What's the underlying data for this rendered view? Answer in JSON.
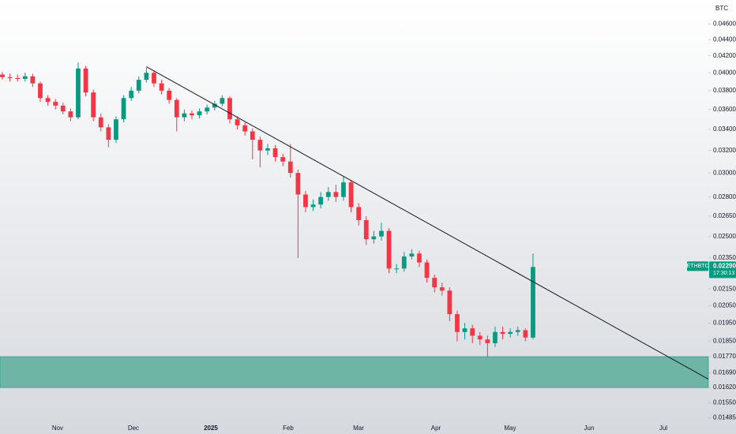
{
  "chart_data": {
    "type": "candlestick",
    "currency": "BTC",
    "symbol": "ETHBTC",
    "countdown": "17:30:13",
    "last_price": {
      "value": 0.0229,
      "label": "0.02290"
    },
    "log_scale": true,
    "grid": false,
    "up_color": "#089981",
    "down_color": "#f23645",
    "open": [
      0.0398,
      0.0395,
      0.0394,
      0.0393,
      0.0396,
      0.0388,
      0.0372,
      0.0368,
      0.0364,
      0.0358,
      0.0352,
      0.0405,
      0.0378,
      0.0352,
      0.0342,
      0.033,
      0.035,
      0.0372,
      0.038,
      0.0392,
      0.04,
      0.0388,
      0.038,
      0.037,
      0.0352,
      0.0356,
      0.0354,
      0.0358,
      0.0362,
      0.0366,
      0.0372,
      0.035,
      0.0344,
      0.0338,
      0.033,
      0.032,
      0.0322,
      0.0314,
      0.031,
      0.03,
      0.0282,
      0.0272,
      0.0274,
      0.028,
      0.0284,
      0.028,
      0.0292,
      0.0272,
      0.0262,
      0.0248,
      0.025,
      0.0254,
      0.0228,
      0.0228,
      0.0236,
      0.0238,
      0.0232,
      0.0222,
      0.0216,
      0.0214,
      0.02,
      0.019,
      0.0192,
      0.0188,
      0.0186,
      0.0184,
      0.019,
      0.0189,
      0.019,
      0.0191,
      0.0187
    ],
    "high": [
      0.0401,
      0.0399,
      0.0398,
      0.04,
      0.0399,
      0.039,
      0.0375,
      0.0371,
      0.0367,
      0.0361,
      0.0412,
      0.0408,
      0.0381,
      0.0356,
      0.0345,
      0.0353,
      0.0375,
      0.0384,
      0.0396,
      0.0406,
      0.0403,
      0.0392,
      0.0383,
      0.0372,
      0.036,
      0.0359,
      0.0361,
      0.0365,
      0.0369,
      0.0375,
      0.0374,
      0.0353,
      0.0347,
      0.0341,
      0.0333,
      0.0326,
      0.0325,
      0.0317,
      0.0326,
      0.0303,
      0.0285,
      0.0278,
      0.0284,
      0.0288,
      0.029,
      0.0297,
      0.0294,
      0.0275,
      0.0265,
      0.0254,
      0.026,
      0.0256,
      0.0231,
      0.0239,
      0.0241,
      0.024,
      0.0234,
      0.0224,
      0.0219,
      0.0216,
      0.0202,
      0.0195,
      0.0194,
      0.019,
      0.0188,
      0.0193,
      0.0193,
      0.0192,
      0.0193,
      0.0192,
      0.0238
    ],
    "low": [
      0.0392,
      0.039,
      0.039,
      0.039,
      0.0384,
      0.0368,
      0.0364,
      0.036,
      0.0355,
      0.0348,
      0.035,
      0.0374,
      0.0348,
      0.0338,
      0.0323,
      0.0327,
      0.0347,
      0.0369,
      0.0377,
      0.0389,
      0.0384,
      0.0376,
      0.0366,
      0.0338,
      0.0348,
      0.035,
      0.0351,
      0.0355,
      0.0359,
      0.0363,
      0.0346,
      0.034,
      0.0334,
      0.0312,
      0.0305,
      0.0316,
      0.031,
      0.0306,
      0.0296,
      0.0235,
      0.0268,
      0.0269,
      0.0271,
      0.0277,
      0.0276,
      0.0277,
      0.0268,
      0.0258,
      0.0244,
      0.0245,
      0.0247,
      0.0225,
      0.0225,
      0.0226,
      0.0234,
      0.0229,
      0.0219,
      0.0213,
      0.0211,
      0.0196,
      0.0185,
      0.0186,
      0.0184,
      0.0183,
      0.0177,
      0.0182,
      0.0186,
      0.0187,
      0.0188,
      0.0185,
      0.0186
    ],
    "close": [
      0.0395,
      0.0394,
      0.0393,
      0.0396,
      0.0388,
      0.0372,
      0.0368,
      0.0364,
      0.0358,
      0.0352,
      0.0405,
      0.0378,
      0.0352,
      0.0342,
      0.033,
      0.035,
      0.0372,
      0.038,
      0.0392,
      0.04,
      0.0388,
      0.038,
      0.037,
      0.0352,
      0.0356,
      0.0354,
      0.0358,
      0.0362,
      0.0366,
      0.0372,
      0.035,
      0.0344,
      0.0338,
      0.033,
      0.032,
      0.0322,
      0.0314,
      0.031,
      0.03,
      0.0282,
      0.0272,
      0.0274,
      0.028,
      0.0284,
      0.028,
      0.0292,
      0.0272,
      0.0262,
      0.0248,
      0.025,
      0.0254,
      0.0228,
      0.0228,
      0.0236,
      0.0238,
      0.0232,
      0.0222,
      0.0216,
      0.0214,
      0.02,
      0.019,
      0.0192,
      0.0188,
      0.0186,
      0.0184,
      0.019,
      0.0189,
      0.019,
      0.0191,
      0.0187,
      0.0229
    ],
    "trendline": {
      "x": [
        19,
        93.1
      ],
      "y": [
        0.0407,
        0.0166
      ],
      "color": "#131722"
    },
    "zone": [
      0.0162,
      0.0177
    ],
    "zone_color": "#6fb5a6",
    "xlim": [
      -0.31,
      93.13
    ],
    "ylim": [
      0.0146,
      0.0493
    ],
    "xticks": [
      {
        "value": 7.29,
        "label": "Nov"
      },
      {
        "value": 17.29,
        "label": "Dec"
      },
      {
        "value": 27.5,
        "label": "2025"
      },
      {
        "value": 37.71,
        "label": "Feb"
      },
      {
        "value": 46.98,
        "label": "Mar"
      },
      {
        "value": 57.19,
        "label": "Apr"
      },
      {
        "value": 66.98,
        "label": "May"
      },
      {
        "value": 77.4,
        "label": "Jun"
      },
      {
        "value": 87.19,
        "label": "Jul"
      }
    ],
    "yticks": [
      {
        "value": 0.046,
        "label": "0.04600"
      },
      {
        "value": 0.044,
        "label": "0.04400"
      },
      {
        "value": 0.042,
        "label": "0.04200"
      },
      {
        "value": 0.04,
        "label": "0.04000"
      },
      {
        "value": 0.038,
        "label": "0.03800"
      },
      {
        "value": 0.036,
        "label": "0.03600"
      },
      {
        "value": 0.034,
        "label": "0.03400"
      },
      {
        "value": 0.032,
        "label": "0.03200"
      },
      {
        "value": 0.03,
        "label": "0.03000"
      },
      {
        "value": 0.028,
        "label": "0.02800"
      },
      {
        "value": 0.0265,
        "label": "0.02650"
      },
      {
        "value": 0.025,
        "label": "0.02500"
      },
      {
        "value": 0.0235,
        "label": "0.02350"
      },
      {
        "value": 0.0215,
        "label": "0.02150"
      },
      {
        "value": 0.0205,
        "label": "0.02050"
      },
      {
        "value": 0.0195,
        "label": "0.01950"
      },
      {
        "value": 0.0185,
        "label": "0.01850"
      },
      {
        "value": 0.0177,
        "label": "0.01770"
      },
      {
        "value": 0.0169,
        "label": "0.01690"
      },
      {
        "value": 0.0162,
        "label": "0.01620"
      },
      {
        "value": 0.0155,
        "label": "0.01550"
      },
      {
        "value": 0.01485,
        "label": "0.01485"
      }
    ]
  }
}
